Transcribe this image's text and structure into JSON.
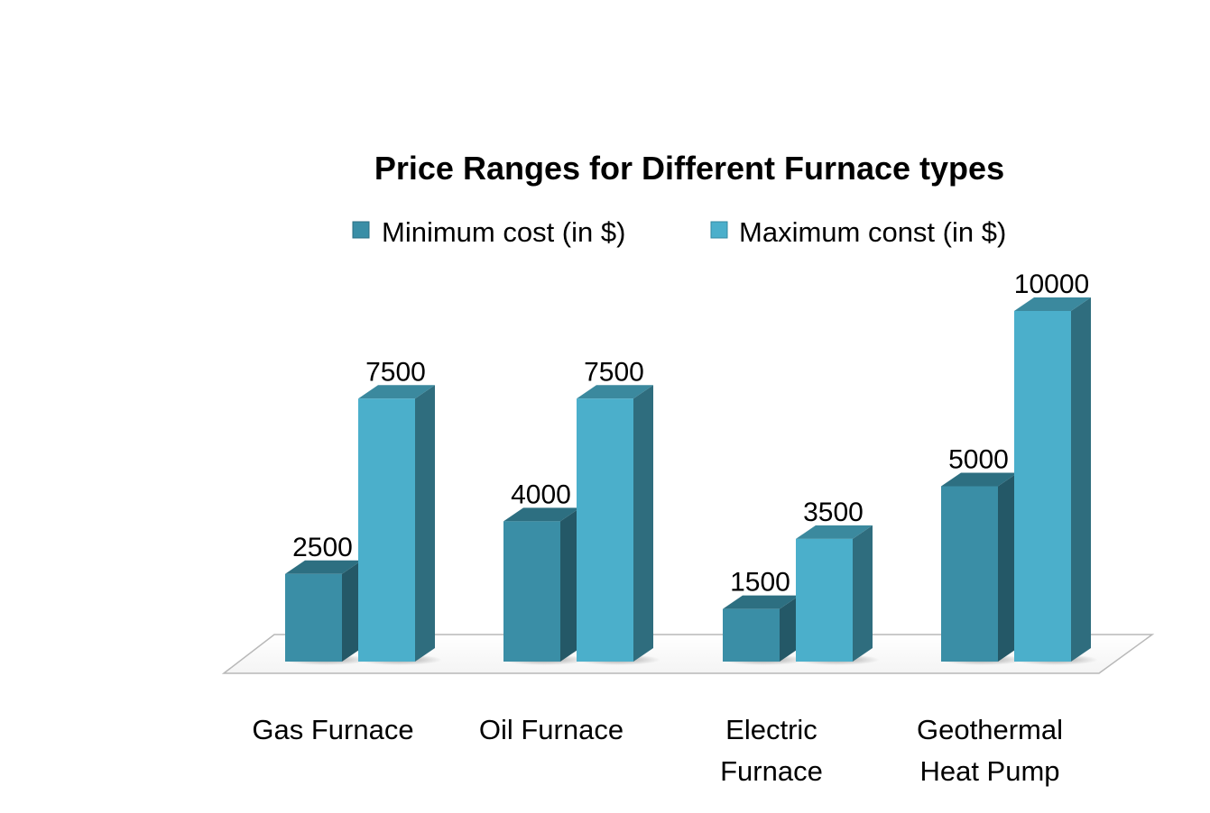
{
  "chart_data": {
    "type": "bar",
    "title": "Price Ranges for Different Furnace types",
    "categories": [
      [
        "Gas Furnace"
      ],
      [
        "Oil Furnace"
      ],
      [
        "Electric",
        "Furnace"
      ],
      [
        "Geothermal",
        "Heat Pump"
      ]
    ],
    "series": [
      {
        "name": "Minimum cost (in $)",
        "values": [
          2500,
          4000,
          1500,
          5000
        ],
        "color": "#3a8ea6"
      },
      {
        "name": "Maximum const (in $)",
        "values": [
          7500,
          7500,
          3500,
          10000
        ],
        "color": "#4bafcb"
      }
    ],
    "ylim": [
      0,
      10000
    ],
    "legend": "top",
    "grid": false,
    "style": "3d-column",
    "xlabel": "",
    "ylabel": ""
  }
}
